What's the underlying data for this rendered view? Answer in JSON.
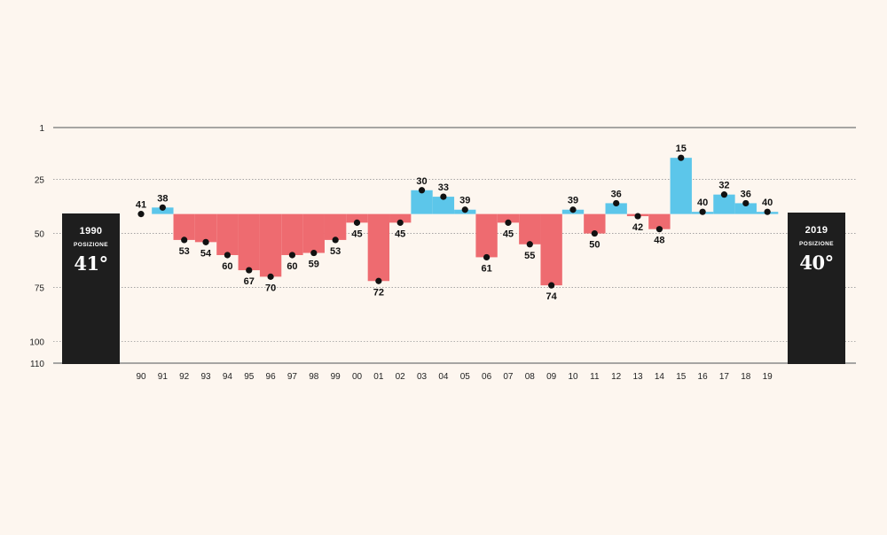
{
  "chart_data": {
    "type": "bar",
    "baseline": 41,
    "ylim": [
      1,
      110
    ],
    "y_ticks": [
      1,
      25,
      50,
      75,
      100,
      110
    ],
    "categories": [
      "90",
      "91",
      "92",
      "93",
      "94",
      "95",
      "96",
      "97",
      "98",
      "99",
      "00",
      "01",
      "02",
      "03",
      "04",
      "05",
      "06",
      "07",
      "08",
      "09",
      "10",
      "11",
      "12",
      "13",
      "14",
      "15",
      "16",
      "17",
      "18",
      "19"
    ],
    "values": [
      41,
      38,
      53,
      54,
      60,
      67,
      70,
      60,
      59,
      53,
      45,
      72,
      45,
      30,
      33,
      39,
      61,
      45,
      55,
      74,
      39,
      50,
      36,
      42,
      48,
      15,
      40,
      32,
      36,
      40
    ],
    "colors": {
      "better": "#5cc6ea",
      "worse": "#ee6b70",
      "point": "#111111",
      "grid": "#999999"
    },
    "grid": true
  },
  "left_box": {
    "year": "1990",
    "label": "POSIZIONE",
    "position": "41°"
  },
  "right_box": {
    "year": "2019",
    "label": "POSIZIONE",
    "position": "40°"
  }
}
